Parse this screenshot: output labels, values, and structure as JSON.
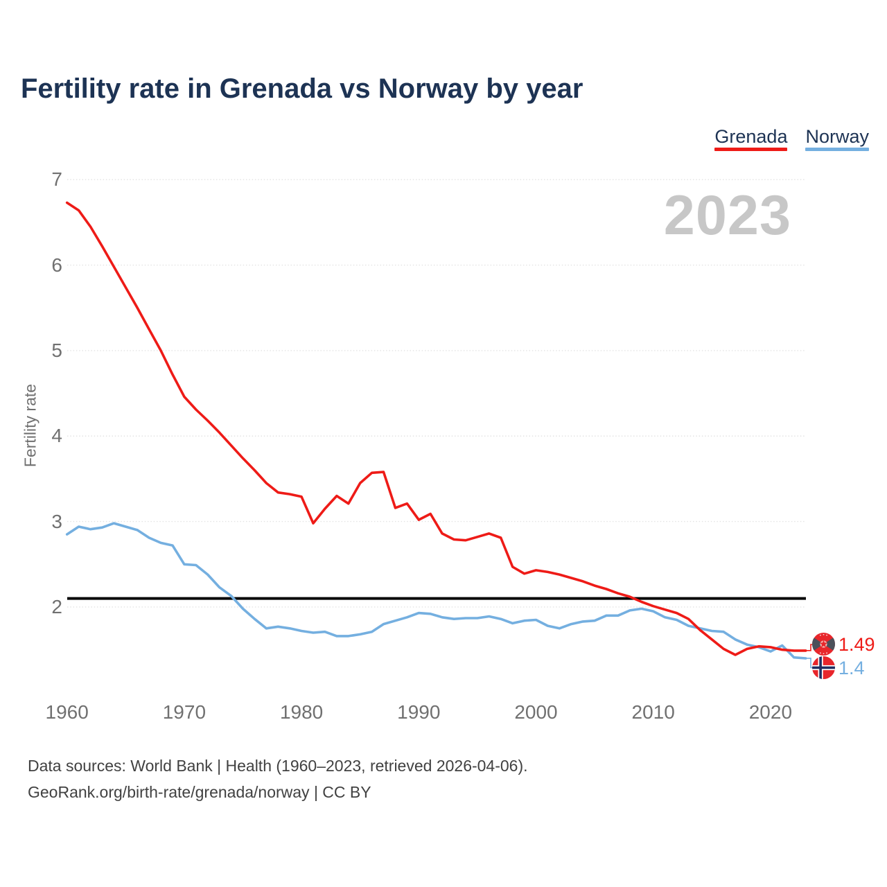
{
  "header": {
    "title": "Fertility rate in Grenada vs Norway by year"
  },
  "legend": {
    "items": [
      {
        "label": "Grenada",
        "color": "#ee1b17"
      },
      {
        "label": "Norway",
        "color": "#74afe0"
      }
    ]
  },
  "watermark": "2023",
  "y_axis": {
    "label": "Fertility rate",
    "ticks": [
      7,
      6,
      5,
      4,
      3,
      2
    ]
  },
  "x_axis": {
    "ticks": [
      1960,
      1970,
      1980,
      1990,
      2000,
      2010,
      2020
    ]
  },
  "reference_line": {
    "value": 2.1,
    "color": "#050505"
  },
  "end_labels": [
    {
      "series": "Grenada",
      "value": "1.49",
      "color": "#ee1b17",
      "flag": "grenada-flag"
    },
    {
      "series": "Norway",
      "value": "1.4",
      "color": "#74afe0",
      "flag": "norway-flag"
    }
  ],
  "footer": {
    "line1": "Data sources: World Bank | Health (1960–2023, retrieved 2026-04-06).",
    "line2": "GeoRank.org/birth-rate/grenada/norway | CC BY"
  },
  "chart_data": {
    "type": "line",
    "title": "Fertility rate in Grenada vs Norway by year",
    "xlabel": "",
    "ylabel": "Fertility rate",
    "x_start": 1960,
    "x_end": 2023,
    "ylim": [
      1.3,
      7
    ],
    "yticks": [
      2,
      3,
      4,
      5,
      6,
      7
    ],
    "grid": "horizontal-dotted",
    "legend_position": "top-right",
    "reference_line": 2.1,
    "series": [
      {
        "name": "Grenada",
        "color": "#ee1b17",
        "end_value": 1.49,
        "values": [
          6.73,
          6.64,
          6.45,
          6.22,
          5.98,
          5.74,
          5.5,
          5.25,
          5.0,
          4.72,
          4.46,
          4.31,
          4.18,
          4.04,
          3.89,
          3.74,
          3.6,
          3.45,
          3.34,
          3.32,
          3.29,
          2.98,
          3.15,
          3.3,
          3.21,
          3.45,
          3.57,
          3.58,
          3.16,
          3.21,
          3.02,
          3.09,
          2.86,
          2.79,
          2.78,
          2.82,
          2.86,
          2.81,
          2.47,
          2.39,
          2.43,
          2.41,
          2.38,
          2.34,
          2.3,
          2.25,
          2.21,
          2.16,
          2.12,
          2.06,
          2.01,
          1.97,
          1.93,
          1.86,
          1.73,
          1.62,
          1.51,
          1.44,
          1.51,
          1.54,
          1.53,
          1.5,
          1.49,
          1.49
        ]
      },
      {
        "name": "Norway",
        "color": "#74afe0",
        "end_value": 1.4,
        "values": [
          2.85,
          2.94,
          2.91,
          2.93,
          2.98,
          2.94,
          2.9,
          2.81,
          2.75,
          2.72,
          2.5,
          2.49,
          2.38,
          2.23,
          2.13,
          1.98,
          1.86,
          1.75,
          1.77,
          1.75,
          1.72,
          1.7,
          1.71,
          1.66,
          1.66,
          1.68,
          1.71,
          1.8,
          1.84,
          1.88,
          1.93,
          1.92,
          1.88,
          1.86,
          1.87,
          1.87,
          1.89,
          1.86,
          1.81,
          1.84,
          1.85,
          1.78,
          1.75,
          1.8,
          1.83,
          1.84,
          1.9,
          1.9,
          1.96,
          1.98,
          1.95,
          1.88,
          1.85,
          1.78,
          1.75,
          1.72,
          1.71,
          1.62,
          1.56,
          1.53,
          1.48,
          1.55,
          1.41,
          1.4
        ]
      }
    ]
  }
}
